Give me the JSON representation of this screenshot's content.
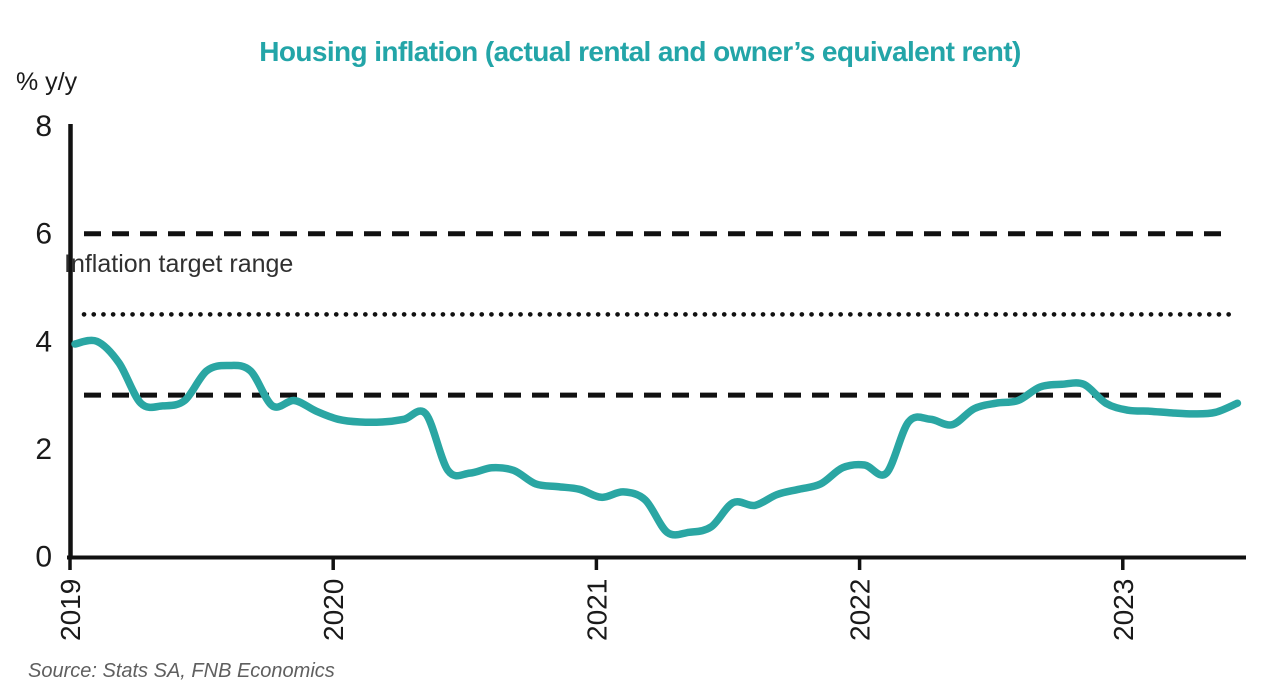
{
  "title": "Housing inflation (actual rental and owner’s equivalent rent)",
  "y_axis_unit": "% y/y",
  "annotation": "Inflation target range",
  "source": "Source: Stats SA, FNB Economics",
  "colors": {
    "title_teal": "#23a5a8",
    "line_teal": "#2aa6a3",
    "axis_black": "#111111",
    "tick_text": "#1a1a1a",
    "annotation_text": "#303030",
    "source_text": "#5f5f5f"
  },
  "chart_data": {
    "type": "line",
    "title": "Housing inflation (actual rental and owner’s equivalent rent)",
    "xlabel": "",
    "ylabel": "% y/y",
    "ylim": [
      0,
      8
    ],
    "y_ticks": [
      0,
      2,
      4,
      6,
      8
    ],
    "x_ticks": [
      "2019",
      "2020",
      "2021",
      "2022",
      "2023"
    ],
    "x_start": "2019-01",
    "frequency": "monthly",
    "grid": false,
    "legend": "none",
    "series": [
      {
        "name": "Housing inflation (actual rental and owner's equivalent rent), % y/y",
        "values": [
          3.95,
          4.0,
          3.6,
          2.85,
          2.8,
          2.9,
          3.45,
          3.55,
          3.45,
          2.8,
          2.9,
          2.7,
          2.55,
          2.5,
          2.5,
          2.55,
          2.65,
          1.6,
          1.55,
          1.65,
          1.6,
          1.35,
          1.3,
          1.25,
          1.1,
          1.2,
          1.05,
          0.45,
          0.45,
          0.55,
          1.0,
          0.95,
          1.15,
          1.25,
          1.35,
          1.65,
          1.7,
          1.55,
          2.5,
          2.55,
          2.45,
          2.75,
          2.85,
          2.9,
          3.15,
          3.2,
          3.2,
          2.85,
          2.72,
          2.7,
          2.67,
          2.65,
          2.68,
          2.85
        ]
      }
    ],
    "reference_lines": [
      {
        "label": "Inflation target upper bound",
        "value": 6.0,
        "style": "dashed"
      },
      {
        "label": "Inflation target midpoint",
        "value": 4.5,
        "style": "dotted"
      },
      {
        "label": "Inflation target lower bound",
        "value": 3.0,
        "style": "dashed"
      }
    ],
    "annotation": "Inflation target range",
    "source": "Source: Stats SA, FNB Economics"
  }
}
